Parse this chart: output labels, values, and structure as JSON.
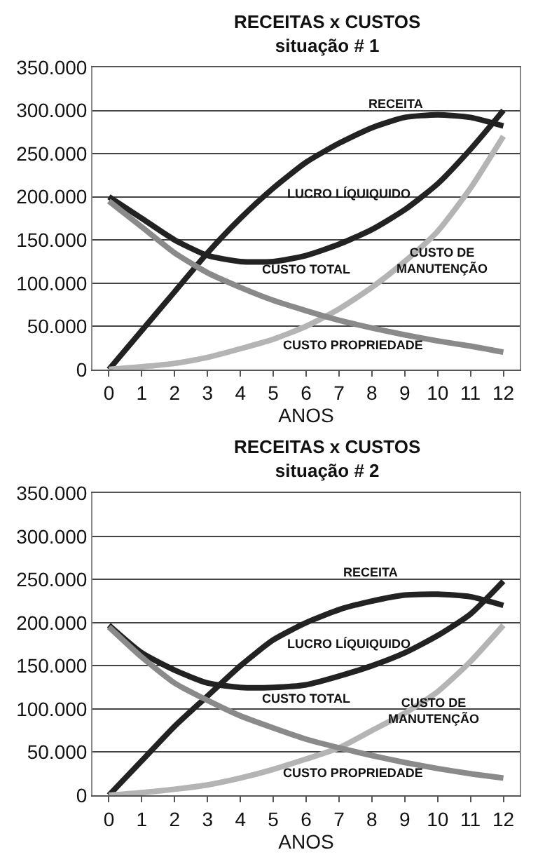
{
  "chart_data": [
    {
      "type": "line",
      "title": "RECEITAS x CUSTOS",
      "subtitle": "situação # 1",
      "xlabel": "ANOS",
      "x": [
        0,
        1,
        2,
        3,
        4,
        5,
        6,
        7,
        8,
        9,
        10,
        11,
        12
      ],
      "series": [
        {
          "color": "#222222",
          "values": [
            0,
            45000,
            90000,
            135000,
            175000,
            210000,
            240000,
            262000,
            280000,
            292000,
            295000,
            292000,
            282000
          ]
        },
        {
          "color": "#222222",
          "values": [
            200000,
            175000,
            150000,
            132000,
            125000,
            125000,
            132000,
            145000,
            162000,
            185000,
            215000,
            255000,
            300000
          ]
        },
        {
          "color": "#b4b4b4",
          "values": [
            0,
            3000,
            7000,
            14000,
            24000,
            35000,
            50000,
            70000,
            95000,
            125000,
            160000,
            210000,
            270000
          ]
        },
        {
          "color": "#8a8a8a",
          "values": [
            195000,
            165000,
            135000,
            112000,
            95000,
            80000,
            68000,
            57000,
            48000,
            40000,
            33000,
            27000,
            20000
          ]
        }
      ],
      "xlim": [
        -0.5,
        12.5
      ],
      "xticks": [
        0,
        1,
        2,
        3,
        4,
        5,
        6,
        7,
        8,
        9,
        10,
        11,
        12
      ],
      "ylim": [
        0,
        350000
      ],
      "yticks": [
        {
          "value": 0,
          "label": "0"
        },
        {
          "value": 50000,
          "label": "50.000"
        },
        {
          "value": 100000,
          "label": "100.000"
        },
        {
          "value": 150000,
          "label": "150.000"
        },
        {
          "value": 200000,
          "label": "200.000"
        },
        {
          "value": 250000,
          "label": "250.000"
        },
        {
          "value": 300000,
          "label": "300.000"
        },
        {
          "value": 350000,
          "label": "350.000"
        }
      ],
      "grid": "y",
      "marker": "none",
      "line_style": "solid",
      "annotations": [
        "RECEITA",
        "LUCRO LÍQUIQUIDO",
        "CUSTO TOTAL",
        "CUSTO DE\nMANUTENÇÃO",
        "CUSTO PROPRIEDADE"
      ]
    },
    {
      "type": "line",
      "title": "RECEITAS x CUSTOS",
      "subtitle": "situação # 2",
      "xlabel": "ANOS",
      "x": [
        0,
        1,
        2,
        3,
        4,
        5,
        6,
        7,
        8,
        9,
        10,
        11,
        12
      ],
      "series": [
        {
          "color": "#222222",
          "values": [
            0,
            40000,
            80000,
            115000,
            150000,
            180000,
            200000,
            215000,
            225000,
            232000,
            233000,
            230000,
            220000
          ]
        },
        {
          "color": "#222222",
          "values": [
            197000,
            165000,
            145000,
            130000,
            125000,
            125000,
            128000,
            138000,
            150000,
            165000,
            185000,
            210000,
            248000
          ]
        },
        {
          "color": "#b4b4b4",
          "values": [
            0,
            3000,
            7000,
            12000,
            20000,
            30000,
            42000,
            55000,
            75000,
            95000,
            120000,
            155000,
            197000
          ]
        },
        {
          "color": "#8a8a8a",
          "values": [
            195000,
            160000,
            130000,
            110000,
            92000,
            78000,
            65000,
            55000,
            46000,
            38000,
            31000,
            25000,
            20000
          ]
        }
      ],
      "xlim": [
        -0.5,
        12.5
      ],
      "xticks": [
        0,
        1,
        2,
        3,
        4,
        5,
        6,
        7,
        8,
        9,
        10,
        11,
        12
      ],
      "ylim": [
        0,
        350000
      ],
      "yticks": [
        {
          "value": 0,
          "label": "0"
        },
        {
          "value": 50000,
          "label": "50.000"
        },
        {
          "value": 100000,
          "label": "100.000"
        },
        {
          "value": 150000,
          "label": "150.000"
        },
        {
          "value": 200000,
          "label": "200.000"
        },
        {
          "value": 250000,
          "label": "250.000"
        },
        {
          "value": 300000,
          "label": "300.000"
        },
        {
          "value": 350000,
          "label": "350.000"
        }
      ],
      "grid": "y",
      "marker": "none",
      "line_style": "solid",
      "annotations": [
        "RECEITA",
        "LUCRO LÍQUIQUIDO",
        "CUSTO TOTAL",
        "CUSTO DE\nMANUTENÇÃO",
        "CUSTO PROPRIEDADE"
      ]
    }
  ]
}
